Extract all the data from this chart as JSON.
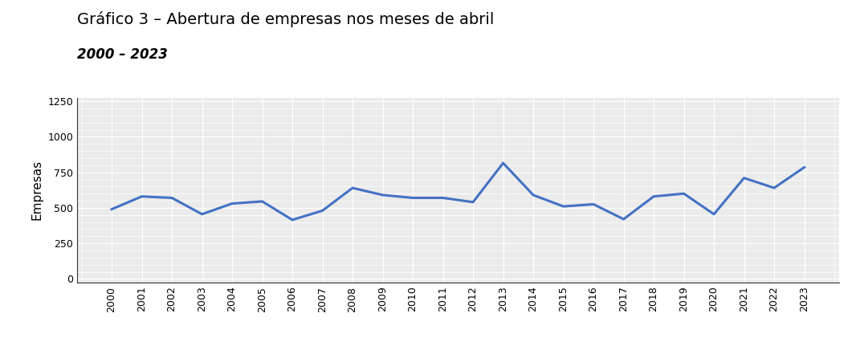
{
  "title": "Gráfico 3 – Abertura de empresas nos meses de abril",
  "subtitle": "2000 – 2023",
  "ylabel": "Empresas",
  "years": [
    2000,
    2001,
    2002,
    2003,
    2004,
    2005,
    2006,
    2007,
    2008,
    2009,
    2010,
    2011,
    2012,
    2013,
    2014,
    2015,
    2016,
    2017,
    2018,
    2019,
    2020,
    2021,
    2022,
    2023
  ],
  "values": [
    490,
    580,
    570,
    455,
    530,
    545,
    415,
    480,
    640,
    590,
    570,
    570,
    540,
    815,
    590,
    510,
    525,
    420,
    580,
    600,
    455,
    710,
    640,
    785
  ],
  "line_color": "#4472C4",
  "line_width": 2.2,
  "fig_bg_color": "#ffffff",
  "plot_bg_color": "#EBEBEB",
  "ylim": [
    -25,
    1275
  ],
  "yticks": [
    0,
    250,
    500,
    750,
    1000,
    1250
  ],
  "grid_color": "#ffffff",
  "title_fontsize": 14,
  "subtitle_fontsize": 12,
  "ylabel_fontsize": 11,
  "tick_fontsize": 9
}
